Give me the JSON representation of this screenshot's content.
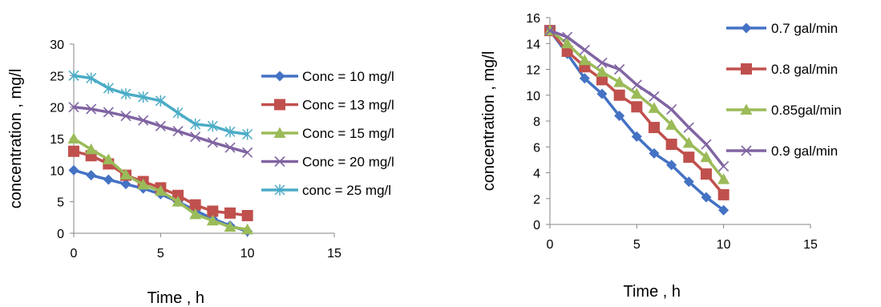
{
  "chart_data": [
    {
      "type": "line",
      "xlabel": "Time , h",
      "ylabel": "concentration , mg/l",
      "xlim": [
        0,
        15
      ],
      "ylim": [
        0,
        30
      ],
      "xticks": [
        0,
        5,
        10,
        15
      ],
      "yticks": [
        0,
        5,
        10,
        15,
        20,
        25,
        30
      ],
      "legend": "right",
      "x": [
        0,
        1,
        2,
        3,
        4,
        5,
        6,
        7,
        8,
        9,
        10
      ],
      "series": [
        {
          "name": "Conc = 10 mg/l",
          "color": "#4472C4",
          "marker": "diamond",
          "values": [
            10,
            9.2,
            8.5,
            7.8,
            7.1,
            6.2,
            5.0,
            3.6,
            2.3,
            1.2,
            0.3
          ]
        },
        {
          "name": "Conc = 13 mg/l",
          "color": "#C0504D",
          "marker": "square",
          "values": [
            13,
            12.3,
            11.0,
            9.2,
            8.2,
            7.2,
            6.0,
            4.5,
            3.5,
            3.2,
            2.8
          ]
        },
        {
          "name": "Conc = 15 mg/l",
          "color": "#9BBB59",
          "marker": "triangle",
          "values": [
            15,
            13.3,
            11.7,
            9.3,
            7.7,
            6.7,
            5.0,
            3.0,
            2.0,
            1.0,
            0.6
          ]
        },
        {
          "name": "Conc = 20 mg/l",
          "color": "#8064A2",
          "marker": "x",
          "values": [
            20,
            19.7,
            19.2,
            18.6,
            17.9,
            17.0,
            16.2,
            15.3,
            14.4,
            13.6,
            12.8
          ]
        },
        {
          "name": "conc = 25 mg/l",
          "color": "#4BACC6",
          "marker": "star",
          "values": [
            25,
            24.6,
            23.0,
            22.1,
            21.6,
            21.0,
            19.1,
            17.3,
            17.0,
            16.1,
            15.7
          ]
        }
      ]
    },
    {
      "type": "line",
      "xlabel": "Time , h",
      "ylabel": "concentration , mg/l",
      "xlim": [
        0,
        15
      ],
      "ylim": [
        0,
        16
      ],
      "xticks": [
        0,
        5,
        10,
        15
      ],
      "yticks": [
        0,
        2,
        4,
        6,
        8,
        10,
        12,
        14,
        16
      ],
      "legend": "right",
      "x": [
        0,
        1,
        2,
        3,
        4,
        5,
        6,
        7,
        8,
        9,
        10
      ],
      "series": [
        {
          "name": "0.7 gal/min",
          "color": "#4472C4",
          "marker": "diamond",
          "values": [
            15,
            13.2,
            11.3,
            10.1,
            8.4,
            6.8,
            5.5,
            4.6,
            3.3,
            2.1,
            1.1
          ]
        },
        {
          "name": "0.8 gal/min",
          "color": "#C0504D",
          "marker": "square",
          "values": [
            15,
            13.4,
            12.2,
            11.2,
            10.0,
            9.1,
            7.5,
            6.2,
            5.2,
            3.9,
            2.3
          ]
        },
        {
          "name": "0.85gal/min",
          "color": "#9BBB59",
          "marker": "triangle",
          "values": [
            15,
            14.0,
            12.7,
            11.8,
            11.0,
            10.1,
            9.0,
            7.7,
            6.3,
            5.2,
            3.5
          ]
        },
        {
          "name": "0.9 gal/min",
          "color": "#8064A2",
          "marker": "x",
          "values": [
            15,
            14.5,
            13.5,
            12.5,
            12.0,
            10.8,
            9.9,
            8.9,
            7.5,
            6.2,
            4.5
          ]
        }
      ]
    }
  ]
}
